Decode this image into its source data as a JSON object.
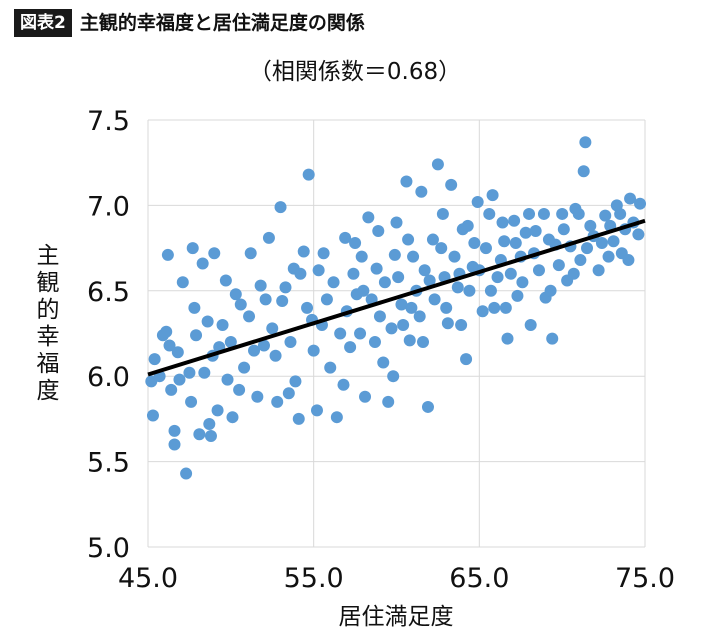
{
  "header": {
    "badge": "図表2",
    "title": "主観的幸福度と居住満足度の関係"
  },
  "chart_data": {
    "type": "scatter",
    "subtitle": "（相関係数＝0.68）",
    "xlabel": "居住満足度",
    "ylabel": "主観的幸福度",
    "xlim": [
      45.0,
      75.0
    ],
    "ylim": [
      5.0,
      7.5
    ],
    "x_ticks": [
      "45.0",
      "55.0",
      "65.0",
      "75.0"
    ],
    "y_ticks": [
      "5.0",
      "5.5",
      "6.0",
      "6.5",
      "7.0",
      "7.5"
    ],
    "grid": true,
    "point_color": "#5b9bd5",
    "trendline": {
      "x": [
        45.0,
        75.0
      ],
      "y": [
        6.01,
        6.91
      ],
      "color": "#000000"
    },
    "series": [
      {
        "values": [
          [
            45.2,
            5.97
          ],
          [
            45.3,
            5.77
          ],
          [
            45.4,
            6.1
          ],
          [
            45.9,
            6.24
          ],
          [
            46.1,
            6.26
          ],
          [
            46.2,
            6.71
          ],
          [
            46.4,
            5.92
          ],
          [
            46.6,
            5.6
          ],
          [
            46.6,
            5.68
          ],
          [
            46.9,
            5.98
          ],
          [
            47.1,
            6.55
          ],
          [
            47.3,
            5.43
          ],
          [
            47.7,
            6.75
          ],
          [
            47.6,
            5.85
          ],
          [
            47.9,
            6.24
          ],
          [
            48.1,
            5.66
          ],
          [
            48.3,
            6.66
          ],
          [
            48.4,
            6.02
          ],
          [
            48.7,
            5.72
          ],
          [
            48.8,
            5.65
          ],
          [
            49.0,
            6.72
          ],
          [
            49.3,
            6.17
          ],
          [
            49.7,
            6.56
          ],
          [
            49.8,
            5.98
          ],
          [
            50.1,
            5.76
          ],
          [
            50.3,
            6.48
          ],
          [
            50.6,
            6.42
          ],
          [
            51.2,
            6.72
          ],
          [
            51.6,
            5.88
          ],
          [
            51.8,
            6.53
          ],
          [
            52.3,
            6.81
          ],
          [
            52.0,
            6.18
          ],
          [
            52.5,
            6.28
          ],
          [
            53.0,
            6.99
          ],
          [
            53.1,
            6.44
          ],
          [
            53.5,
            5.9
          ],
          [
            53.8,
            6.63
          ],
          [
            54.1,
            5.75
          ],
          [
            54.4,
            6.73
          ],
          [
            54.9,
            6.33
          ],
          [
            55.2,
            5.8
          ],
          [
            55.6,
            6.72
          ],
          [
            56.0,
            6.05
          ],
          [
            56.4,
            5.76
          ],
          [
            56.9,
            6.81
          ],
          [
            57.2,
            6.17
          ],
          [
            57.6,
            6.48
          ],
          [
            58.1,
            5.88
          ],
          [
            58.3,
            6.93
          ],
          [
            58.8,
            6.63
          ],
          [
            59.2,
            6.08
          ],
          [
            59.5,
            5.85
          ],
          [
            59.9,
            6.71
          ],
          [
            60.3,
            6.42
          ],
          [
            60.6,
            7.14
          ],
          [
            60.8,
            6.21
          ],
          [
            61.2,
            6.5
          ],
          [
            61.5,
            7.08
          ],
          [
            61.9,
            5.82
          ],
          [
            62.0,
            6.56
          ],
          [
            62.5,
            7.24
          ],
          [
            62.7,
            6.75
          ],
          [
            63.1,
            6.31
          ],
          [
            63.3,
            7.12
          ],
          [
            63.7,
            6.52
          ],
          [
            64.0,
            6.86
          ],
          [
            64.2,
            6.1
          ],
          [
            64.6,
            6.64
          ],
          [
            64.9,
            7.02
          ],
          [
            65.2,
            6.38
          ],
          [
            65.6,
            6.95
          ],
          [
            65.8,
            7.06
          ],
          [
            66.1,
            6.58
          ],
          [
            66.5,
            6.79
          ],
          [
            66.7,
            6.22
          ],
          [
            67.1,
            6.91
          ],
          [
            67.3,
            6.47
          ],
          [
            67.8,
            6.84
          ],
          [
            68.1,
            6.3
          ],
          [
            68.3,
            6.72
          ],
          [
            68.9,
            6.95
          ],
          [
            69.0,
            6.46
          ],
          [
            69.4,
            6.22
          ],
          [
            69.6,
            6.77
          ],
          [
            70.1,
            6.86
          ],
          [
            70.3,
            6.56
          ],
          [
            70.8,
            6.98
          ],
          [
            71.1,
            6.68
          ],
          [
            71.3,
            7.2
          ],
          [
            71.4,
            7.37
          ],
          [
            71.9,
            6.82
          ],
          [
            72.2,
            6.62
          ],
          [
            72.6,
            6.94
          ],
          [
            73.1,
            6.79
          ],
          [
            73.3,
            7.0
          ],
          [
            73.6,
            6.72
          ],
          [
            74.0,
            6.68
          ],
          [
            74.1,
            7.04
          ],
          [
            74.6,
            6.83
          ],
          [
            74.7,
            7.01
          ],
          [
            50.8,
            6.05
          ],
          [
            51.1,
            6.35
          ],
          [
            52.7,
            6.12
          ],
          [
            53.3,
            6.52
          ],
          [
            54.6,
            6.4
          ],
          [
            55.5,
            6.3
          ],
          [
            56.2,
            6.55
          ],
          [
            57.0,
            6.38
          ],
          [
            57.8,
            6.25
          ],
          [
            58.5,
            6.45
          ],
          [
            59.0,
            6.35
          ],
          [
            59.7,
            6.28
          ],
          [
            60.1,
            6.58
          ],
          [
            60.9,
            6.4
          ],
          [
            61.7,
            6.62
          ],
          [
            62.3,
            6.45
          ],
          [
            62.9,
            6.58
          ],
          [
            63.5,
            6.7
          ],
          [
            64.4,
            6.5
          ],
          [
            65.0,
            6.62
          ],
          [
            65.4,
            6.75
          ],
          [
            66.3,
            6.68
          ],
          [
            66.9,
            6.6
          ],
          [
            67.5,
            6.7
          ],
          [
            68.6,
            6.62
          ],
          [
            69.2,
            6.8
          ],
          [
            70.5,
            6.76
          ],
          [
            71.7,
            6.88
          ],
          [
            72.4,
            6.78
          ],
          [
            72.9,
            6.88
          ],
          [
            49.5,
            6.3
          ],
          [
            48.9,
            6.12
          ],
          [
            47.5,
            6.02
          ],
          [
            46.8,
            6.14
          ],
          [
            50.0,
            6.2
          ],
          [
            51.4,
            6.15
          ],
          [
            52.1,
            6.45
          ],
          [
            53.6,
            6.2
          ],
          [
            54.2,
            6.6
          ],
          [
            55.0,
            6.15
          ],
          [
            55.8,
            6.45
          ],
          [
            56.6,
            6.25
          ],
          [
            57.4,
            6.6
          ],
          [
            58.0,
            6.5
          ],
          [
            58.7,
            6.2
          ],
          [
            59.3,
            6.55
          ],
          [
            60.4,
            6.3
          ],
          [
            61.0,
            6.7
          ],
          [
            61.4,
            6.35
          ],
          [
            62.2,
            6.8
          ],
          [
            63.0,
            6.4
          ],
          [
            63.8,
            6.6
          ],
          [
            64.7,
            6.78
          ],
          [
            65.7,
            6.5
          ],
          [
            66.4,
            6.9
          ],
          [
            67.6,
            6.55
          ],
          [
            68.4,
            6.85
          ],
          [
            69.8,
            6.65
          ],
          [
            70.7,
            6.6
          ],
          [
            71.5,
            6.75
          ],
          [
            72.8,
            6.7
          ],
          [
            73.8,
            6.86
          ],
          [
            54.7,
            7.18
          ],
          [
            57.5,
            6.78
          ],
          [
            60.0,
            6.9
          ],
          [
            62.8,
            6.95
          ],
          [
            65.9,
            6.4
          ],
          [
            68.0,
            6.95
          ],
          [
            70.0,
            6.95
          ],
          [
            56.8,
            5.95
          ],
          [
            59.8,
            6.0
          ],
          [
            58.9,
            6.85
          ],
          [
            61.6,
            6.2
          ],
          [
            63.9,
            6.3
          ],
          [
            66.6,
            6.4
          ],
          [
            69.3,
            6.5
          ],
          [
            53.9,
            5.97
          ],
          [
            52.8,
            5.85
          ],
          [
            50.5,
            5.92
          ],
          [
            49.2,
            5.8
          ],
          [
            48.6,
            6.32
          ],
          [
            47.8,
            6.4
          ],
          [
            46.3,
            6.18
          ],
          [
            45.7,
            6.0
          ],
          [
            55.3,
            6.62
          ],
          [
            57.9,
            6.7
          ],
          [
            60.7,
            6.8
          ],
          [
            64.3,
            6.88
          ],
          [
            67.2,
            6.78
          ],
          [
            71.0,
            6.95
          ],
          [
            73.5,
            6.95
          ],
          [
            74.3,
            6.9
          ]
        ]
      }
    ]
  }
}
